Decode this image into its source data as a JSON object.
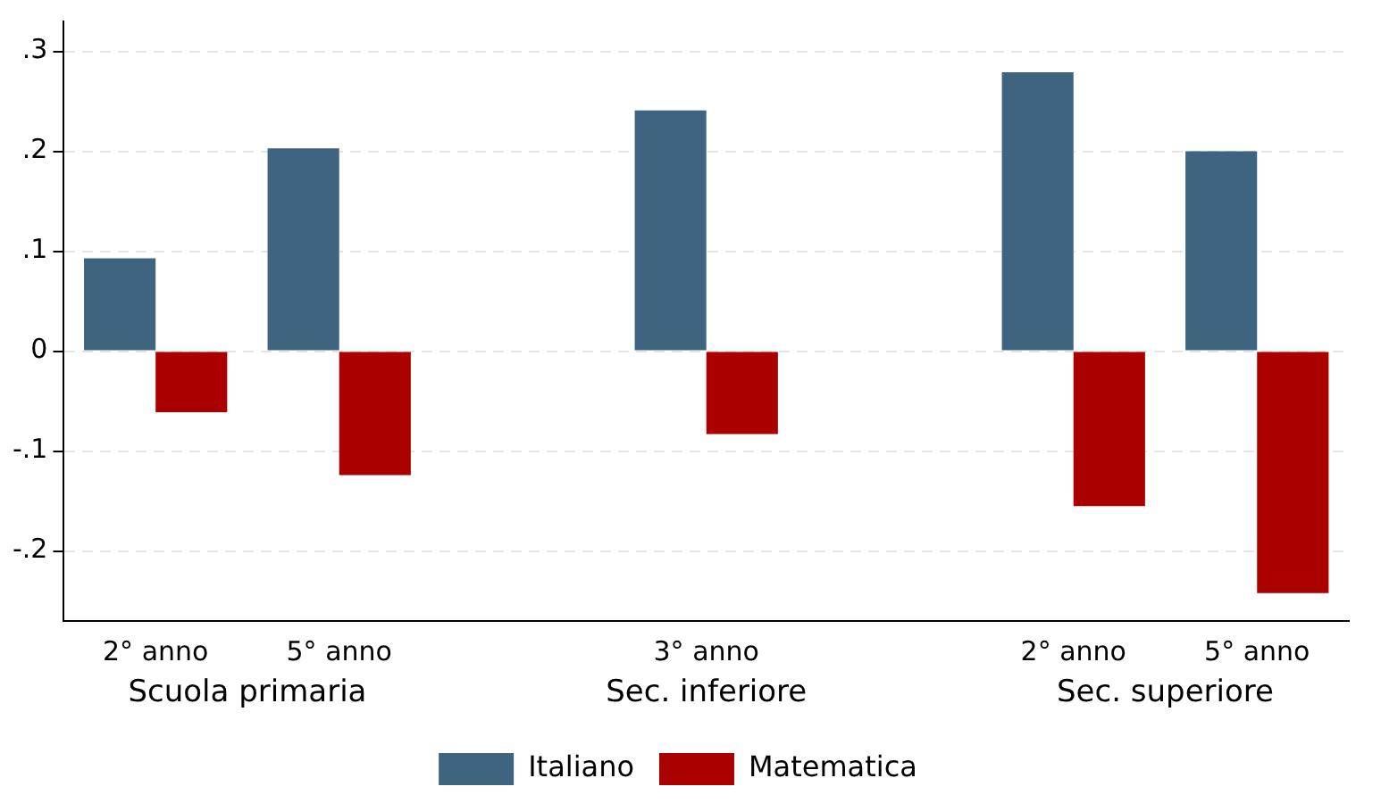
{
  "chart_data": {
    "type": "bar",
    "categories": [
      "2° anno",
      "5° anno",
      null,
      "3° anno",
      null,
      "2° anno",
      "5° anno"
    ],
    "series": [
      {
        "name": "Italiano",
        "color": "#3e6480",
        "values": [
          0.093,
          0.203,
          null,
          0.241,
          null,
          0.279,
          0.2
        ]
      },
      {
        "name": "Matematica",
        "color": "#ab0000",
        "values": [
          -0.061,
          -0.124,
          null,
          -0.083,
          null,
          -0.155,
          -0.242
        ]
      }
    ],
    "annotations": [
      "Scuola primaria",
      "Sec. inferiore",
      "Sec. superiore"
    ],
    "ylim": [
      -0.27,
      0.33
    ],
    "yticks": [
      {
        "value": -0.2,
        "label": "-.2"
      },
      {
        "value": -0.1,
        "label": "-.1"
      },
      0,
      {
        "value": 0.1,
        "label": ".1"
      },
      {
        "value": 0.2,
        "label": ".2"
      },
      {
        "value": 0.3,
        "label": ".3"
      }
    ],
    "grid": "y",
    "legend": "bottom"
  }
}
